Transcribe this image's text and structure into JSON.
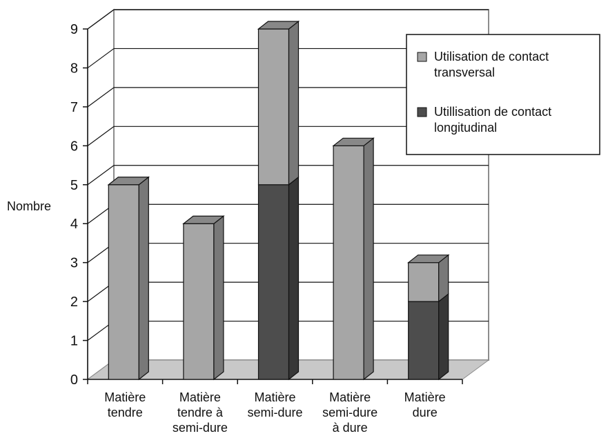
{
  "chart_data": {
    "type": "bar",
    "stacked": true,
    "three_d": true,
    "ylabel": "Nombre",
    "ylim": [
      0,
      9
    ],
    "yticks": [
      "0",
      "1",
      "2",
      "3",
      "4",
      "5",
      "6",
      "7",
      "8",
      "9"
    ],
    "grid": true,
    "legend_position": "top-right",
    "categories": [
      [
        "Matière",
        "tendre"
      ],
      [
        "Matière",
        "tendre à",
        "semi-dure"
      ],
      [
        "Matière",
        "semi-dure"
      ],
      [
        "Matière",
        "semi-dure",
        "à dure"
      ],
      [
        "Matière",
        "dure"
      ]
    ],
    "series": [
      {
        "name": "Utillisation de contact longitudinal",
        "legend_lines": [
          "Utillisation de contact",
          "longitudinal"
        ],
        "color": "#4d4d4d",
        "values": [
          0,
          0,
          5,
          0,
          2
        ]
      },
      {
        "name": "Utilisation de contact transversal",
        "legend_lines": [
          "Utilisation de contact",
          "transversal"
        ],
        "color": "#a6a6a6",
        "values": [
          5,
          4,
          4,
          6,
          1
        ]
      }
    ]
  }
}
